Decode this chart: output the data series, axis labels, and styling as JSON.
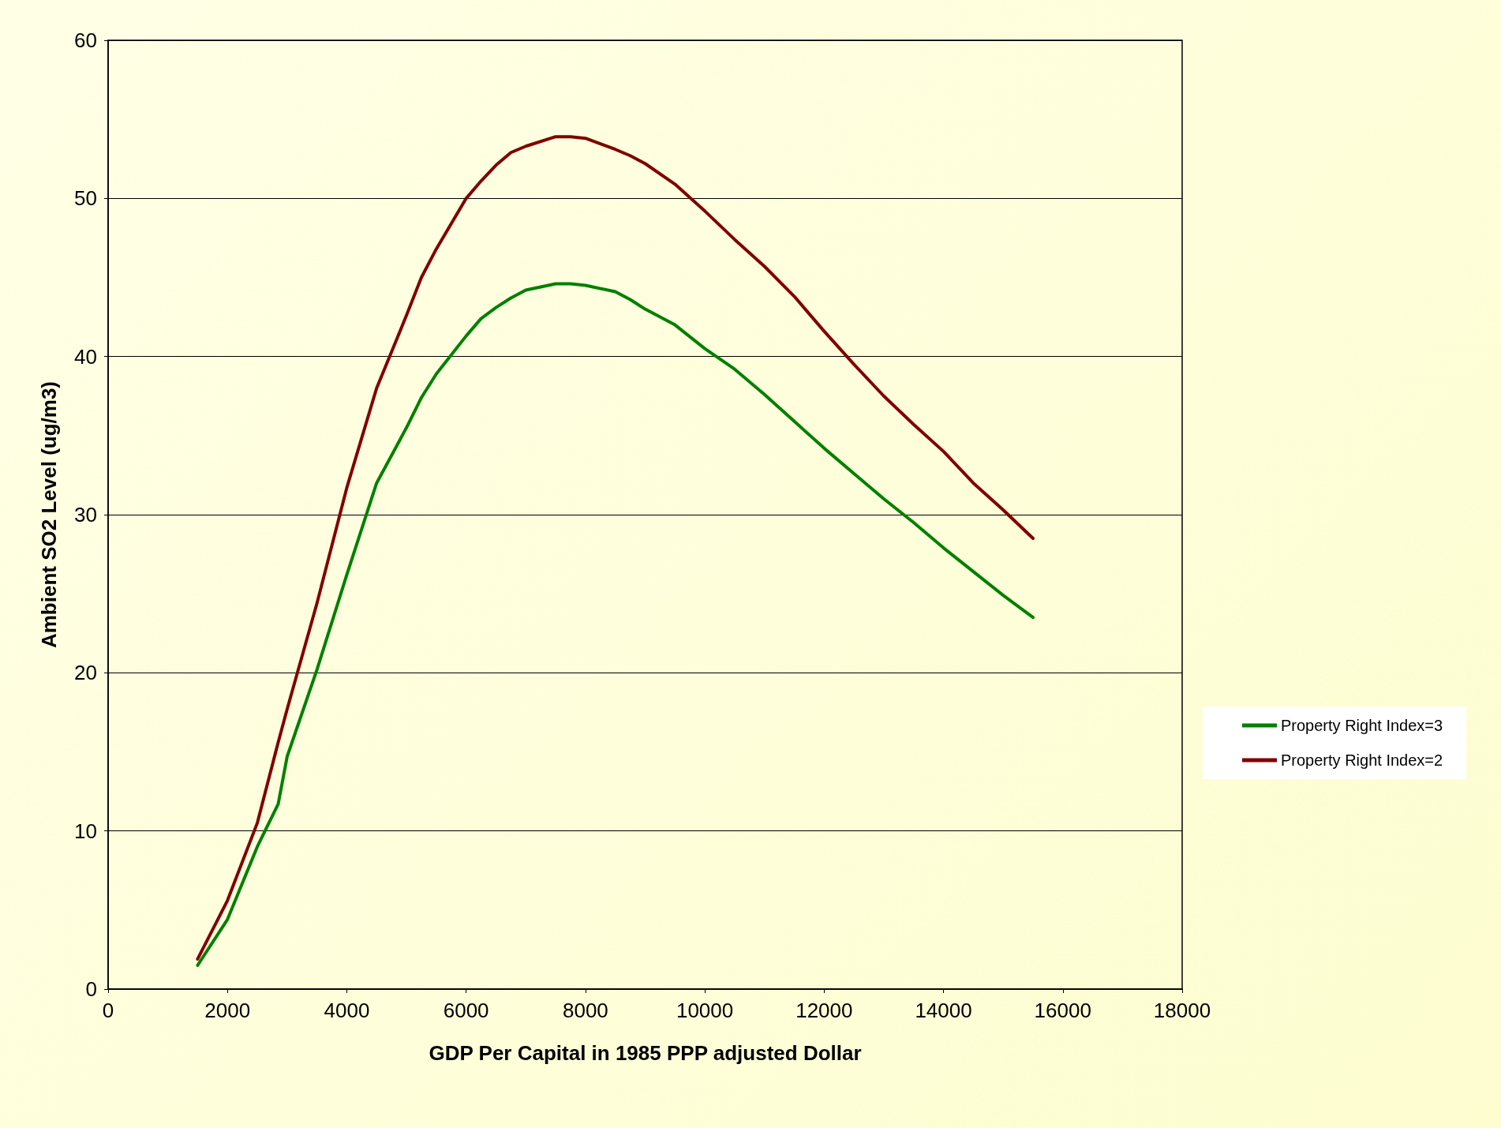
{
  "chart_data": {
    "type": "line",
    "xlabel": "GDP Per Capital in 1985 PPP adjusted Dollar",
    "ylabel": "Ambient SO2 Level (ug/m3)",
    "x": [
      1500,
      2000,
      2500,
      2850,
      3000,
      3500,
      4000,
      4500,
      5000,
      5250,
      5500,
      6000,
      6250,
      6500,
      6750,
      7000,
      7500,
      7750,
      8000,
      8500,
      8750,
      9000,
      9500,
      10000,
      10500,
      11000,
      11500,
      12000,
      12500,
      13000,
      13500,
      14000,
      14500,
      15000,
      15500
    ],
    "series": [
      {
        "name": "Property Right Index=3",
        "color": "#008000",
        "values": [
          1.5,
          4.4,
          9.0,
          11.7,
          14.7,
          20.2,
          26.2,
          32.0,
          35.5,
          37.4,
          38.9,
          41.3,
          42.4,
          43.1,
          43.7,
          44.2,
          44.6,
          44.6,
          44.5,
          44.1,
          43.6,
          43.0,
          42.0,
          40.5,
          39.2,
          37.6,
          35.9,
          34.2,
          32.6,
          31.0,
          29.5,
          27.9,
          26.4,
          24.9,
          23.5
        ]
      },
      {
        "name": "Property Right Index=2",
        "color": "#800000",
        "values": [
          1.9,
          5.6,
          10.5,
          15.6,
          17.7,
          24.4,
          31.7,
          38.0,
          42.6,
          45.0,
          46.8,
          50.0,
          51.1,
          52.1,
          52.9,
          53.3,
          53.9,
          53.9,
          53.8,
          53.1,
          52.7,
          52.2,
          50.9,
          49.2,
          47.4,
          45.7,
          43.8,
          41.6,
          39.5,
          37.5,
          35.7,
          34.0,
          32.0,
          30.3,
          28.5
        ]
      }
    ],
    "xlim": [
      0,
      18000
    ],
    "xticks": [
      0,
      2000,
      4000,
      6000,
      8000,
      10000,
      12000,
      14000,
      16000,
      18000
    ],
    "ylim": [
      0,
      60
    ],
    "yticks": [
      0,
      10,
      20,
      30,
      40,
      50,
      60
    ],
    "grid": "y",
    "legend": "right",
    "marker": "none",
    "line_style": "solid"
  }
}
